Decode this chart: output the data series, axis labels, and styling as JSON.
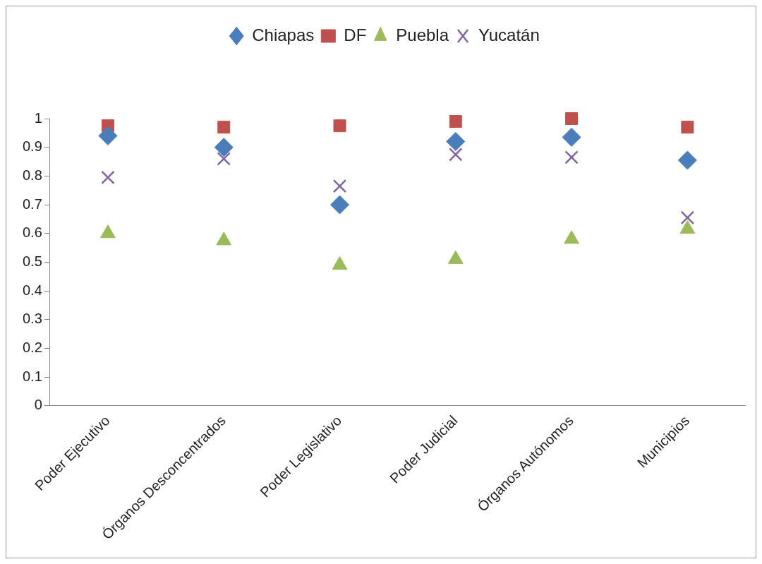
{
  "chart_data": {
    "type": "scatter",
    "categories": [
      "Poder Ejecutivo",
      "Órganos Desconcentrados",
      "Poder Legislativo",
      "Poder Judicial",
      "Órganos Autónomos",
      "Municipios"
    ],
    "series": [
      {
        "name": "Chiapas",
        "color": "#4a7ebb",
        "marker": "diamond",
        "values": [
          0.94,
          0.9,
          0.7,
          0.92,
          0.935,
          0.855
        ]
      },
      {
        "name": "DF",
        "color": "#c0504d",
        "marker": "square",
        "values": [
          0.975,
          0.97,
          0.975,
          0.99,
          1.0,
          0.97
        ]
      },
      {
        "name": "Puebla",
        "color": "#9bbb59",
        "marker": "triangle",
        "values": [
          0.6,
          0.575,
          0.49,
          0.51,
          0.58,
          0.615
        ]
      },
      {
        "name": "Yucatán",
        "color": "#8064a2",
        "marker": "cross",
        "values": [
          0.795,
          0.86,
          0.765,
          0.875,
          0.865,
          0.655
        ]
      }
    ],
    "ylim": [
      0,
      1
    ],
    "yticks": [
      0,
      0.1,
      0.2,
      0.3,
      0.4,
      0.5,
      0.6,
      0.7,
      0.8,
      0.9,
      1
    ],
    "grid": false,
    "legend": "top"
  }
}
